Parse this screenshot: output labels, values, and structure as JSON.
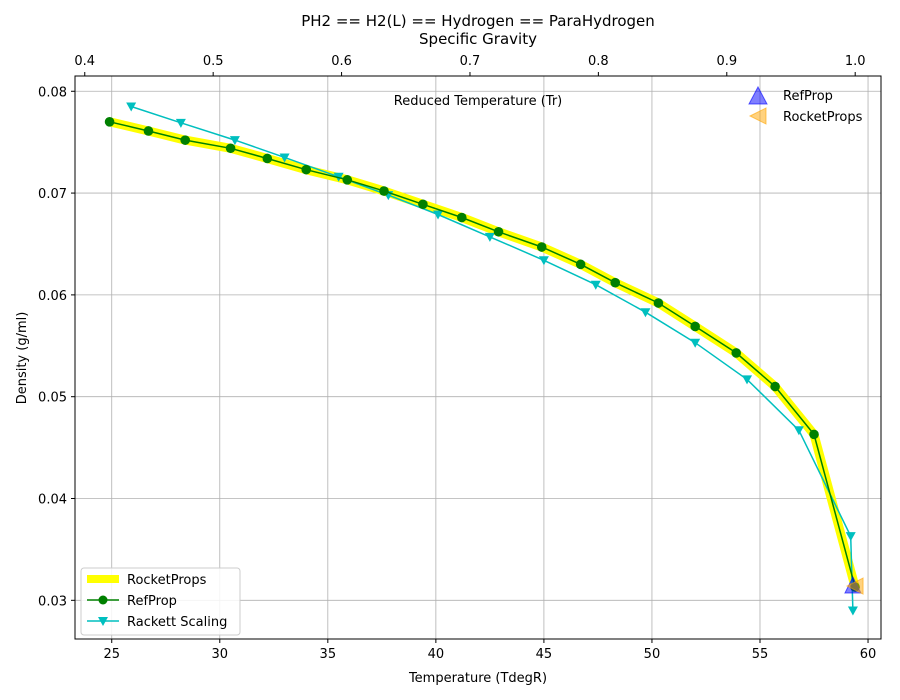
{
  "chart_data": {
    "type": "line",
    "title": "PH2 == H2(L) == Hydrogen == ParaHydrogen",
    "subtitle": "Specific Gravity",
    "xlabel": "Temperature (TdegR)",
    "ylabel": "Density (g/ml)",
    "top_axis_label": "Reduced Temperature (Tr)",
    "xlim": [
      23.3,
      60.6
    ],
    "ylim": [
      0.0262,
      0.0815
    ],
    "top_xlim": [
      0.3924,
      1.0201
    ],
    "x_ticks": [
      "25",
      "30",
      "35",
      "40",
      "45",
      "50",
      "55",
      "60"
    ],
    "y_ticks": [
      "0.03",
      "0.04",
      "0.05",
      "0.06",
      "0.07",
      "0.08"
    ],
    "top_ticks": [
      "0.4",
      "0.5",
      "0.6",
      "0.7",
      "0.8",
      "0.9",
      "1.0"
    ],
    "grid": true,
    "series": [
      {
        "name": "RocketProps",
        "color": "#ffff00",
        "style": "thick-line",
        "x": [
          24.9,
          26.7,
          28.4,
          30.5,
          32.2,
          34.0,
          35.9,
          37.6,
          39.4,
          41.2,
          42.9,
          44.9,
          46.7,
          48.3,
          50.3,
          52.0,
          53.9,
          55.7,
          57.5,
          59.4
        ],
        "y": [
          0.077,
          0.0761,
          0.0752,
          0.0744,
          0.0734,
          0.0723,
          0.0713,
          0.0702,
          0.0689,
          0.0676,
          0.0662,
          0.0647,
          0.063,
          0.0612,
          0.0592,
          0.0569,
          0.0543,
          0.051,
          0.0463,
          0.0313
        ]
      },
      {
        "name": "RefProp",
        "color": "#008000",
        "style": "line-circle",
        "x": [
          24.9,
          26.7,
          28.4,
          30.5,
          32.2,
          34.0,
          35.9,
          37.6,
          39.4,
          41.2,
          42.9,
          44.9,
          46.7,
          48.3,
          50.3,
          52.0,
          53.9,
          55.7,
          57.5,
          59.4
        ],
        "y": [
          0.077,
          0.0761,
          0.0752,
          0.0744,
          0.0734,
          0.0723,
          0.0713,
          0.0702,
          0.0689,
          0.0676,
          0.0662,
          0.0647,
          0.063,
          0.0612,
          0.0592,
          0.0569,
          0.0543,
          0.051,
          0.0463,
          0.0313
        ]
      },
      {
        "name": "Rackett Scaling",
        "color": "#00bfbf",
        "style": "line-triangle-down",
        "x": [
          25.9,
          28.2,
          30.7,
          33.0,
          35.5,
          37.8,
          40.1,
          42.5,
          45.0,
          47.4,
          49.7,
          52.0,
          54.4,
          56.8,
          59.2,
          59.3
        ],
        "y": [
          0.0785,
          0.0769,
          0.0752,
          0.0735,
          0.0716,
          0.0698,
          0.0679,
          0.0657,
          0.0634,
          0.061,
          0.0583,
          0.0553,
          0.0517,
          0.0467,
          0.0363,
          0.029
        ]
      }
    ],
    "critical_points": [
      {
        "name": "RefProp",
        "color": "#0000ff",
        "marker": "triangle-up",
        "x": 59.3,
        "y": 0.0314
      },
      {
        "name": "RocketProps",
        "color": "#ffa500",
        "marker": "triangle-left",
        "x": 59.4,
        "y": 0.0314
      }
    ],
    "legend_lower_left": [
      "RocketProps",
      "RefProp",
      "Rackett Scaling"
    ],
    "legend_upper_right": [
      "RefProp",
      "RocketProps"
    ]
  }
}
